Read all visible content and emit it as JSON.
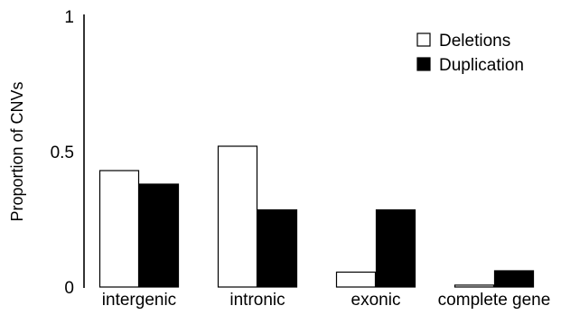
{
  "chart_data": {
    "type": "bar",
    "title": "",
    "xlabel": "",
    "ylabel": "Proportion of CNVs",
    "ylim": [
      0,
      1
    ],
    "yticks": [
      {
        "value": 0,
        "label": "0"
      },
      {
        "value": 0.5,
        "label": "0.5"
      },
      {
        "value": 1,
        "label": "1"
      }
    ],
    "categories": [
      "intergenic",
      "intronic",
      "exonic",
      "complete gene"
    ],
    "series": [
      {
        "name": "Deletions",
        "values": [
          0.43,
          0.52,
          0.055,
          0.007
        ],
        "fill": "#ffffff",
        "stroke": "#000000"
      },
      {
        "name": "Duplication",
        "values": [
          0.38,
          0.285,
          0.285,
          0.06
        ],
        "fill": "#000000",
        "stroke": "#000000"
      }
    ],
    "grid": false,
    "legend_position": "top-right"
  }
}
